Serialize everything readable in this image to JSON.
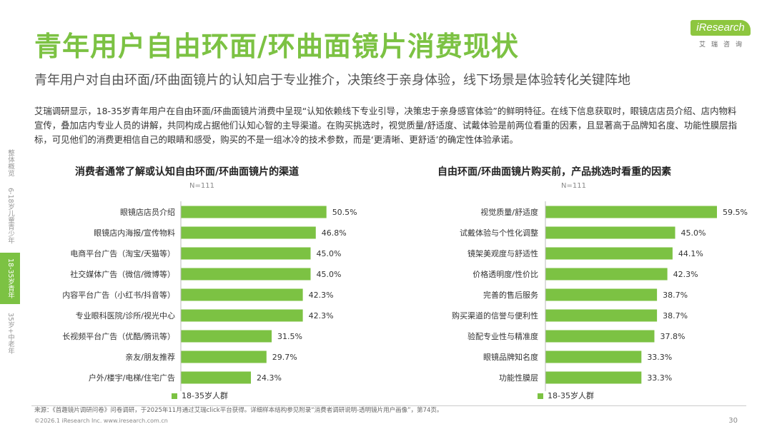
{
  "header": {
    "title": "青年用户自由环面/环曲面镜片消费现状",
    "subtitle": "青年用户对自由环面/环曲面镜片的认知启于专业推介，决策终于亲身体验，线下场景是体验转化关键阵地",
    "body": "艾瑞调研显示，18-35岁青年用户在自由环面/环曲面镜片消费中呈现“认知依赖线下专业引导，决策忠于亲身感官体验”的鲜明特征。在线下信息获取时，眼镜店店员介绍、店内物料宣传，叠加店内专业人员的讲解，共同构成占据他们认知心智的主导渠道。在购买挑选时，视觉质量/舒适度、试戴体验是前两位看重的因素，且显著高于品牌知名度、功能性膜层指标，可见他们的消费更相信自己的眼睛和感受，购买的不是一组冰冷的技术参数，而是‘更清晰、更舒适’的确定性体验承诺。"
  },
  "logo": {
    "text": "iResearch",
    "cn": "艾瑞咨询"
  },
  "sidebar": {
    "items": [
      {
        "label": "整体概览",
        "active": false
      },
      {
        "label": "6-18岁儿童青少年",
        "active": false
      },
      {
        "label": "18-35岁青年",
        "active": true
      },
      {
        "label": "35岁+中老年",
        "active": false
      }
    ]
  },
  "colors": {
    "accent": "#7cc243",
    "bar": "#7cc243"
  },
  "chart_data": [
    {
      "type": "bar",
      "orientation": "horizontal",
      "title": "消费者通常了解或认知自由环面/环曲面镜片的渠道",
      "n_label": "N=111",
      "categories": [
        "眼镜店店员介绍",
        "眼镜店内海报/宣传物料",
        "电商平台广告（淘宝/天猫等）",
        "社交媒体广告（微信/微博等）",
        "内容平台广告（小红书/抖音等）",
        "专业眼科医院/诊所/视光中心",
        "长视频平台广告（优酷/腾讯等）",
        "亲友/朋友推荐",
        "户外/楼宇/电梯/住宅广告"
      ],
      "series": [
        {
          "name": "18-35岁人群",
          "values": [
            50.5,
            46.8,
            45.0,
            45.0,
            42.3,
            42.3,
            31.5,
            29.7,
            24.3
          ]
        }
      ],
      "value_labels": [
        "50.5%",
        "46.8%",
        "45.0%",
        "45.0%",
        "42.3%",
        "42.3%",
        "31.5%",
        "29.7%",
        "24.3%"
      ],
      "legend": "18-35岁人群"
    },
    {
      "type": "bar",
      "orientation": "horizontal",
      "title": "自由环面/环曲面镜片购买前，产品挑选时看重的因素",
      "n_label": "N=111",
      "categories": [
        "视觉质量/舒适度",
        "试戴体验与个性化调整",
        "镜架美观度与舒适性",
        "价格透明度/性价比",
        "完善的售后服务",
        "购买渠道的信誉与便利性",
        "验配专业性与精准度",
        "眼镜品牌知名度",
        "功能性膜层"
      ],
      "series": [
        {
          "name": "18-35岁人群",
          "values": [
            59.5,
            45.0,
            44.1,
            42.3,
            38.7,
            38.7,
            37.8,
            33.3,
            33.3
          ]
        }
      ],
      "value_labels": [
        "59.5%",
        "45.0%",
        "44.1%",
        "42.3%",
        "38.7%",
        "38.7%",
        "37.8%",
        "33.3%",
        "33.3%"
      ],
      "legend": "18-35岁人群"
    }
  ],
  "footer": {
    "source": "来源：《首趣镜片调研问卷》问卷调研，于2025年11月通过艾瑞click平台获得。详细样本结构参见附录“消费者调研说明-透明镜片用户画像”，第74页。",
    "copyright": "©2026.1 iResearch Inc.                    www.iresearch.com.cn",
    "page": "30"
  }
}
